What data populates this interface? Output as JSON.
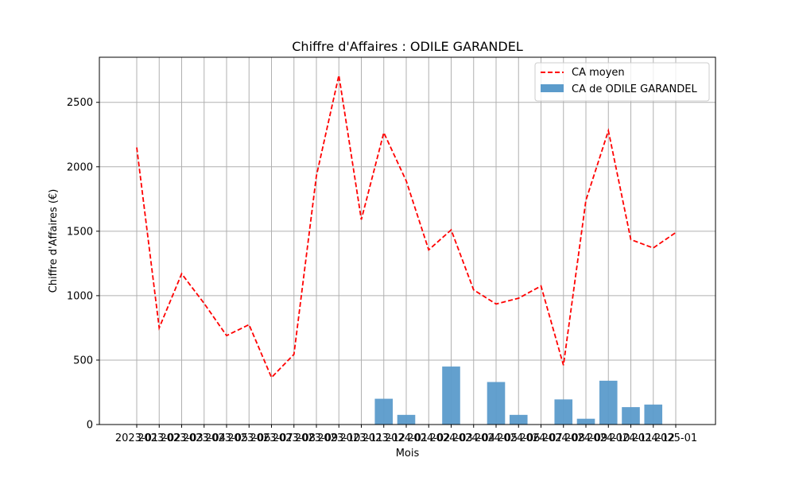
{
  "chart_data": {
    "type": "bar",
    "title": "Chiffre d'Affaires : ODILE GARANDEL",
    "xlabel": "Mois",
    "ylabel": "Chiffre d'Affaires (€)",
    "ylim": [
      0,
      2850
    ],
    "yticks": [
      0,
      500,
      1000,
      1500,
      2000,
      2500
    ],
    "grid": true,
    "legend_position": "top-right",
    "categories": [
      "2023-01",
      "2023-02",
      "2023-03",
      "2023-04",
      "2023-05",
      "2023-06",
      "2023-07",
      "2023-08",
      "2023-09",
      "2023-10",
      "2023-11",
      "2023-12",
      "2024-01",
      "2024-02",
      "2024-03",
      "2024-04",
      "2024-05",
      "2024-06",
      "2024-07",
      "2024-08",
      "2024-09",
      "2024-10",
      "2024-11",
      "2024-12",
      "2025-01"
    ],
    "series": [
      {
        "name": "CA moyen",
        "type": "line",
        "style": "dashed",
        "color": "#ff0000",
        "values": [
          2150,
          750,
          1170,
          940,
          690,
          775,
          365,
          545,
          1930,
          2710,
          1590,
          2265,
          1890,
          1355,
          1510,
          1045,
          935,
          980,
          1075,
          460,
          1740,
          2280,
          1435,
          1370,
          1490
        ]
      },
      {
        "name": "CA de ODILE GARANDEL",
        "type": "bar",
        "color": "#5b9bcb",
        "values": [
          0,
          0,
          0,
          0,
          0,
          0,
          0,
          0,
          0,
          0,
          0,
          200,
          75,
          0,
          450,
          0,
          330,
          75,
          0,
          195,
          45,
          340,
          135,
          155,
          0
        ]
      }
    ]
  }
}
